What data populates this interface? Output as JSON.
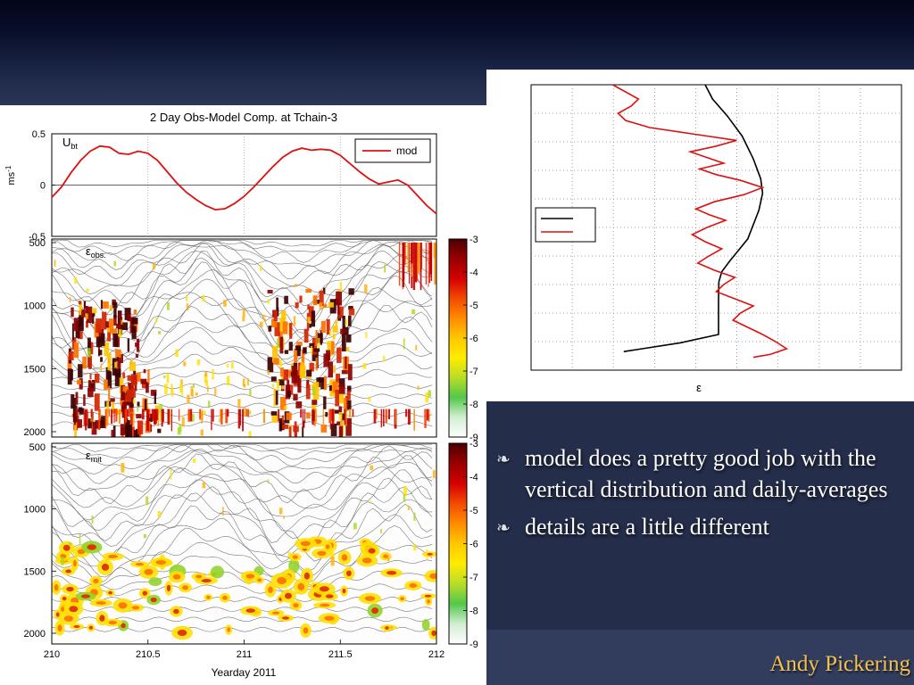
{
  "slide": {
    "background_color": "#323d5e",
    "top_band_color": "#03061a",
    "credit": "Andy Pickering",
    "credit_color": "#f3c150"
  },
  "bullets": {
    "glyph": "❧",
    "items": [
      "model does a pretty good job with the vertical distribution and daily-averages",
      "details are a little different"
    ]
  },
  "chart_data": [
    {
      "id": "obs-model-comparison",
      "type": "line+heatmap",
      "title": "2 Day Obs-Model Comp. at Tchain-3",
      "xlabel": "Yearday 2011",
      "xlim": [
        210,
        212
      ],
      "x_ticks": [
        210,
        210.5,
        211,
        211.5,
        212
      ],
      "x_tick_labels": [
        "210",
        "210.5",
        "211",
        "211.5",
        "212"
      ],
      "colormap": [
        "#4a0000",
        "#9a0000",
        "#d40000",
        "#f34a00",
        "#ff8c00",
        "#ffc800",
        "#ffec00",
        "#b9dc28",
        "#52c84a",
        "#d2eed2",
        "#ffffff"
      ],
      "subplots": [
        {
          "name": "barotropic-velocity",
          "type": "line",
          "label": {
            "base": "U",
            "sub": "bt"
          },
          "ylabel": {
            "base": "ms",
            "sup": "-1"
          },
          "ylim": [
            -0.5,
            0.5
          ],
          "y_ticks": [
            0.5,
            0,
            -0.5
          ],
          "zero_line": true,
          "legend": [
            {
              "label": "mod",
              "color": "#dd1111"
            }
          ],
          "series": {
            "name": "mod",
            "color": "#dd1111",
            "x": [
              210.0,
              210.05,
              210.1,
              210.15,
              210.2,
              210.25,
              210.3,
              210.35,
              210.4,
              210.45,
              210.5,
              210.55,
              210.6,
              210.65,
              210.7,
              210.75,
              210.8,
              210.85,
              210.9,
              210.95,
              211.0,
              211.05,
              211.1,
              211.15,
              211.2,
              211.25,
              211.3,
              211.35,
              211.4,
              211.45,
              211.5,
              211.55,
              211.6,
              211.65,
              211.7,
              211.75,
              211.8,
              211.85,
              211.9,
              211.95,
              212.0
            ],
            "y": [
              -0.12,
              -0.02,
              0.12,
              0.24,
              0.33,
              0.38,
              0.37,
              0.31,
              0.3,
              0.33,
              0.31,
              0.24,
              0.13,
              0.02,
              -0.07,
              -0.14,
              -0.2,
              -0.24,
              -0.23,
              -0.18,
              -0.11,
              -0.02,
              0.08,
              0.18,
              0.27,
              0.33,
              0.36,
              0.34,
              0.35,
              0.34,
              0.29,
              0.21,
              0.13,
              0.06,
              0.01,
              0.03,
              0.05,
              0.0,
              -0.1,
              -0.2,
              -0.28
            ]
          }
        },
        {
          "name": "epsilon-observed",
          "type": "heatmap",
          "label": {
            "base": "ε",
            "sub": "obs."
          },
          "ylim": [
            500,
            2000
          ],
          "y_ticks": [
            500,
            1000,
            1500,
            2000
          ],
          "colorbar_ticks": [
            -3,
            -4,
            -5,
            -6,
            -7,
            -8,
            -9
          ],
          "contours": 26,
          "heave": 34,
          "hotspots": [
            {
              "style": "dense",
              "t": [
                210.08,
                210.45
              ],
              "d": [
                950,
                2000
              ],
              "n": 150
            },
            {
              "style": "dense",
              "t": [
                211.12,
                211.55
              ],
              "d": [
                850,
                2000
              ],
              "n": 170
            },
            {
              "style": "dense",
              "t": [
                210.35,
                210.55
              ],
              "d": [
                1500,
                2000
              ],
              "n": 35
            },
            {
              "style": "speck",
              "t": [
                210.0,
                212.0
              ],
              "d": [
                600,
                1900
              ],
              "n": 70
            },
            {
              "style": "speck",
              "t": [
                210.55,
                211.05
              ],
              "d": [
                1400,
                2000
              ],
              "n": 40
            },
            {
              "style": "vstreak",
              "t": [
                211.8,
                212.0
              ],
              "d": [
                500,
                880
              ],
              "n": 30
            },
            {
              "style": "vstreak",
              "t": [
                210.0,
                212.0
              ],
              "d": [
                1820,
                2000
              ],
              "n": 80
            }
          ]
        },
        {
          "name": "epsilon-model",
          "type": "heatmap",
          "label": {
            "base": "ε",
            "sub": "mit"
          },
          "ylim": [
            500,
            2000
          ],
          "y_ticks": [
            500,
            1000,
            1500,
            2000
          ],
          "colorbar_ticks": [
            -3,
            -4,
            -5,
            -6,
            -7,
            -8,
            -9
          ],
          "contours": 24,
          "heave": 30,
          "hotspots": [
            {
              "style": "blob",
              "t": [
                210.05,
                210.6
              ],
              "d": [
                1300,
                2000
              ],
              "n": 34
            },
            {
              "style": "blob",
              "t": [
                211.05,
                211.7
              ],
              "d": [
                1250,
                2000
              ],
              "n": 38
            },
            {
              "style": "blob",
              "t": [
                210.6,
                211.05
              ],
              "d": [
                1500,
                2000
              ],
              "n": 16
            },
            {
              "style": "blob",
              "t": [
                211.7,
                212.0
              ],
              "d": [
                1350,
                2000
              ],
              "n": 12
            },
            {
              "style": "blob",
              "t": [
                210.0,
                210.1
              ],
              "d": [
                1500,
                2000
              ],
              "n": 6
            },
            {
              "style": "speck",
              "t": [
                210.0,
                212.0
              ],
              "d": [
                550,
                1400
              ],
              "n": 30
            }
          ]
        }
      ]
    },
    {
      "id": "depth-profile",
      "type": "line",
      "xlabel": "ε",
      "grid": "dotted",
      "units": "normalized-plot-fraction",
      "legend": [
        {
          "name": "black",
          "color": "#000000",
          "label": ""
        },
        {
          "name": "red",
          "color": "#dd1111",
          "label": ""
        }
      ],
      "series": [
        {
          "name": "black",
          "color": "#000000",
          "points": [
            [
              0.47,
              0.0
            ],
            [
              0.49,
              0.05
            ],
            [
              0.53,
              0.11
            ],
            [
              0.57,
              0.18
            ],
            [
              0.6,
              0.26
            ],
            [
              0.62,
              0.33
            ],
            [
              0.625,
              0.38
            ],
            [
              0.615,
              0.44
            ],
            [
              0.6,
              0.49
            ],
            [
              0.585,
              0.54
            ],
            [
              0.56,
              0.58
            ],
            [
              0.535,
              0.62
            ],
            [
              0.515,
              0.655
            ],
            [
              0.507,
              0.69
            ],
            [
              0.506,
              0.75
            ],
            [
              0.506,
              0.82
            ],
            [
              0.506,
              0.875
            ],
            [
              0.4,
              0.905
            ],
            [
              0.3,
              0.925
            ],
            [
              0.25,
              0.935
            ]
          ]
        },
        {
          "name": "red",
          "color": "#dd1111",
          "points": [
            [
              0.22,
              0.0
            ],
            [
              0.255,
              0.025
            ],
            [
              0.29,
              0.05
            ],
            [
              0.27,
              0.075
            ],
            [
              0.235,
              0.1
            ],
            [
              0.255,
              0.125
            ],
            [
              0.32,
              0.15
            ],
            [
              0.45,
              0.175
            ],
            [
              0.555,
              0.195
            ],
            [
              0.5,
              0.215
            ],
            [
              0.43,
              0.235
            ],
            [
              0.475,
              0.255
            ],
            [
              0.52,
              0.275
            ],
            [
              0.455,
              0.295
            ],
            [
              0.5,
              0.315
            ],
            [
              0.565,
              0.335
            ],
            [
              0.625,
              0.36
            ],
            [
              0.575,
              0.385
            ],
            [
              0.495,
              0.41
            ],
            [
              0.445,
              0.435
            ],
            [
              0.48,
              0.455
            ],
            [
              0.525,
              0.475
            ],
            [
              0.475,
              0.5
            ],
            [
              0.435,
              0.525
            ],
            [
              0.47,
              0.55
            ],
            [
              0.515,
              0.575
            ],
            [
              0.48,
              0.6
            ],
            [
              0.45,
              0.625
            ],
            [
              0.495,
              0.65
            ],
            [
              0.55,
              0.675
            ],
            [
              0.52,
              0.7
            ],
            [
              0.5,
              0.725
            ],
            [
              0.55,
              0.75
            ],
            [
              0.6,
              0.775
            ],
            [
              0.565,
              0.8
            ],
            [
              0.545,
              0.825
            ],
            [
              0.585,
              0.85
            ],
            [
              0.625,
              0.875
            ],
            [
              0.66,
              0.9
            ],
            [
              0.69,
              0.925
            ],
            [
              0.645,
              0.945
            ],
            [
              0.6,
              0.955
            ]
          ]
        }
      ]
    }
  ]
}
